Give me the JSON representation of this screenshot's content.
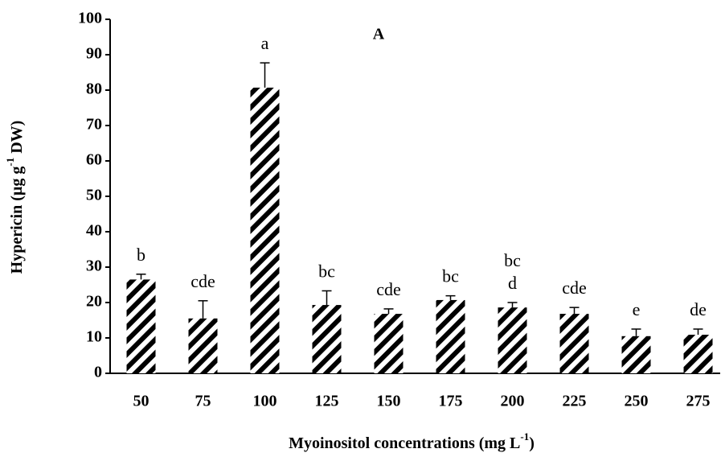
{
  "chart_data": {
    "type": "bar",
    "title": "A",
    "categories": [
      "50",
      "75",
      "100",
      "125",
      "150",
      "175",
      "200",
      "225",
      "250",
      "275"
    ],
    "values": [
      26.5,
      15.5,
      80.7,
      19.3,
      16.8,
      20.7,
      18.6,
      16.8,
      10.5,
      10.9
    ],
    "errors": [
      1.5,
      5,
      7,
      4,
      1.4,
      1.2,
      1.4,
      1.8,
      2,
      1.6
    ],
    "annotations": [
      "b",
      "cde",
      "a",
      "bc",
      "cde",
      "bc",
      [
        "bc",
        "d"
      ],
      "cde",
      "e",
      "de"
    ],
    "ylabel": [
      "Hypericin (µg g",
      "-1",
      " DW)"
    ],
    "xlabel": [
      "Myoinositol concentrations (mg L",
      "-1",
      ")"
    ],
    "ylim": [
      0,
      100
    ],
    "yticks": [
      0,
      10,
      20,
      30,
      40,
      50,
      60,
      70,
      80,
      90,
      100
    ],
    "color": "#000000",
    "grid": false
  }
}
